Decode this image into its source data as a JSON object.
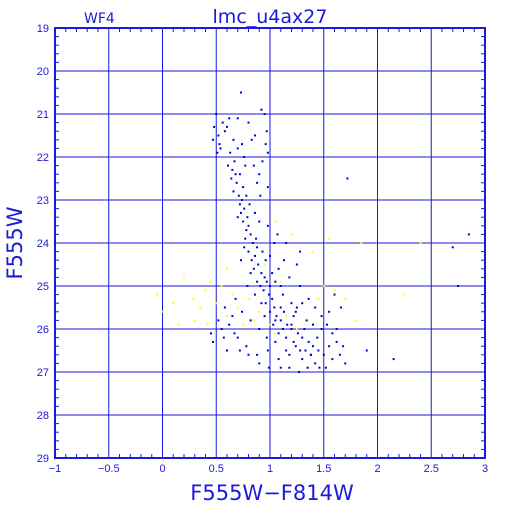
{
  "chart_data": {
    "type": "scatter",
    "panel_label": "WF4",
    "title": "lmc_u4ax27",
    "xlabel": "F555W−F814W",
    "ylabel": "F555W",
    "xlim": [
      -1,
      3
    ],
    "ylim": [
      29,
      19
    ],
    "y_inverted": true,
    "grid": true,
    "xticks": [
      -1,
      -0.5,
      0,
      0.5,
      1,
      1.5,
      2,
      2.5,
      3
    ],
    "xtick_labels": [
      "−1",
      "−0.5",
      "0",
      "0.5",
      "1",
      "1.5",
      "2",
      "2.5",
      "3"
    ],
    "yticks": [
      19,
      20,
      21,
      22,
      23,
      24,
      25,
      26,
      27,
      28,
      29
    ],
    "ytick_labels": [
      "19",
      "20",
      "21",
      "22",
      "23",
      "24",
      "25",
      "26",
      "27",
      "28",
      "29"
    ],
    "colors": {
      "axes": "#1a1adc",
      "blue_points": "#0000cc",
      "yellow_points": "#ffff00"
    },
    "series": [
      {
        "color": "blue",
        "points": [
          [
            0.5,
            21.0
          ],
          [
            0.56,
            21.2
          ],
          [
            0.48,
            21.3
          ],
          [
            0.52,
            21.5
          ],
          [
            0.47,
            21.6
          ],
          [
            0.53,
            21.7
          ],
          [
            0.51,
            21.9
          ],
          [
            0.54,
            21.8
          ],
          [
            0.73,
            20.5
          ],
          [
            0.92,
            20.9
          ],
          [
            0.95,
            21.0
          ],
          [
            0.6,
            21.3
          ],
          [
            0.7,
            21.1
          ],
          [
            0.8,
            21.2
          ],
          [
            0.66,
            21.6
          ],
          [
            0.86,
            21.5
          ],
          [
            0.97,
            21.4
          ],
          [
            0.96,
            21.7
          ],
          [
            0.98,
            21.9
          ],
          [
            0.63,
            21.9
          ],
          [
            0.7,
            21.8
          ],
          [
            0.76,
            22.0
          ],
          [
            0.93,
            22.1
          ],
          [
            0.61,
            22.2
          ],
          [
            0.65,
            22.3
          ],
          [
            0.68,
            22.4
          ],
          [
            0.72,
            22.4
          ],
          [
            0.69,
            22.6
          ],
          [
            0.66,
            22.8
          ],
          [
            0.71,
            22.9
          ],
          [
            0.75,
            22.7
          ],
          [
            0.88,
            22.6
          ],
          [
            0.98,
            22.7
          ],
          [
            0.64,
            22.5
          ],
          [
            0.74,
            23.0
          ],
          [
            0.72,
            23.1
          ],
          [
            0.76,
            23.2
          ],
          [
            0.73,
            23.3
          ],
          [
            0.79,
            23.4
          ],
          [
            0.75,
            23.5
          ],
          [
            0.8,
            23.6
          ],
          [
            0.78,
            23.7
          ],
          [
            0.82,
            23.8
          ],
          [
            0.77,
            23.9
          ],
          [
            0.86,
            23.3
          ],
          [
            0.9,
            23.5
          ],
          [
            0.84,
            24.0
          ],
          [
            0.88,
            24.1
          ],
          [
            0.8,
            24.2
          ],
          [
            0.86,
            24.3
          ],
          [
            0.83,
            24.4
          ],
          [
            0.89,
            24.5
          ],
          [
            0.85,
            24.6
          ],
          [
            0.92,
            24.7
          ],
          [
            0.95,
            24.8
          ],
          [
            0.88,
            24.9
          ],
          [
            0.91,
            25.0
          ],
          [
            0.97,
            24.9
          ],
          [
            1.0,
            25.0
          ],
          [
            0.94,
            25.1
          ],
          [
            0.99,
            25.2
          ],
          [
            1.02,
            25.3
          ],
          [
            0.96,
            25.4
          ],
          [
            1.04,
            25.5
          ],
          [
            1.0,
            25.6
          ],
          [
            1.06,
            25.7
          ],
          [
            1.1,
            25.8
          ],
          [
            1.03,
            25.9
          ],
          [
            1.12,
            26.0
          ],
          [
            1.08,
            26.1
          ],
          [
            1.16,
            25.9
          ],
          [
            1.2,
            26.0
          ],
          [
            1.15,
            26.2
          ],
          [
            1.22,
            26.3
          ],
          [
            1.26,
            26.1
          ],
          [
            1.3,
            26.2
          ],
          [
            1.24,
            26.4
          ],
          [
            1.33,
            26.5
          ],
          [
            1.36,
            26.3
          ],
          [
            1.4,
            26.4
          ],
          [
            1.45,
            26.5
          ],
          [
            1.38,
            26.6
          ],
          [
            1.3,
            26.7
          ],
          [
            1.5,
            26.6
          ],
          [
            1.44,
            26.2
          ],
          [
            1.55,
            26.4
          ],
          [
            1.2,
            25.4
          ],
          [
            1.12,
            25.2
          ],
          [
            1.28,
            25.0
          ],
          [
            1.18,
            24.8
          ],
          [
            1.08,
            24.6
          ],
          [
            0.96,
            24.4
          ],
          [
            1.05,
            24.9
          ],
          [
            1.24,
            25.6
          ],
          [
            1.34,
            25.8
          ],
          [
            1.1,
            25.5
          ],
          [
            1.4,
            25.9
          ],
          [
            1.48,
            26.0
          ],
          [
            1.15,
            26.5
          ],
          [
            1.05,
            26.3
          ],
          [
            0.97,
            26.2
          ],
          [
            0.9,
            26.0
          ],
          [
            0.82,
            25.8
          ],
          [
            0.74,
            25.6
          ],
          [
            0.68,
            25.3
          ],
          [
            0.65,
            25.7
          ],
          [
            0.58,
            25.5
          ],
          [
            0.55,
            26.0
          ],
          [
            0.47,
            26.3
          ],
          [
            0.6,
            26.5
          ],
          [
            0.7,
            26.2
          ],
          [
            0.78,
            26.4
          ],
          [
            0.88,
            26.6
          ],
          [
            0.98,
            26.5
          ],
          [
            1.08,
            26.7
          ],
          [
            1.18,
            26.6
          ],
          [
            1.28,
            26.5
          ],
          [
            1.58,
            26.7
          ],
          [
            1.65,
            26.6
          ],
          [
            1.7,
            26.8
          ],
          [
            1.62,
            26.3
          ],
          [
            1.55,
            25.6
          ],
          [
            1.66,
            25.5
          ],
          [
            1.6,
            25.2
          ],
          [
            1.72,
            22.5
          ],
          [
            1.9,
            26.5
          ],
          [
            2.15,
            26.7
          ],
          [
            2.7,
            24.1
          ],
          [
            2.85,
            23.8
          ],
          [
            2.75,
            25.0
          ],
          [
            1.0,
            24.3
          ],
          [
            1.02,
            24.7
          ],
          [
            0.93,
            24.2
          ],
          [
            0.87,
            23.9
          ],
          [
            0.81,
            23.1
          ],
          [
            0.78,
            22.9
          ],
          [
            0.7,
            23.4
          ],
          [
            0.85,
            22.2
          ],
          [
            0.91,
            22.9
          ],
          [
            1.04,
            24.0
          ],
          [
            1.13,
            24.4
          ],
          [
            1.2,
            25.9
          ],
          [
            1.25,
            25.5
          ],
          [
            1.32,
            26.0
          ],
          [
            1.38,
            26.6
          ],
          [
            1.42,
            26.8
          ],
          [
            1.46,
            26.9
          ],
          [
            1.52,
            26.9
          ],
          [
            1.35,
            26.9
          ],
          [
            1.27,
            27.0
          ],
          [
            1.18,
            26.9
          ],
          [
            1.1,
            26.9
          ],
          [
            0.99,
            26.9
          ],
          [
            0.9,
            26.8
          ],
          [
            0.8,
            26.6
          ],
          [
            0.72,
            26.5
          ],
          [
            0.67,
            26.1
          ],
          [
            0.62,
            25.9
          ],
          [
            0.57,
            26.2
          ],
          [
            0.52,
            25.8
          ],
          [
            0.45,
            26.1
          ],
          [
            0.95,
            25.7
          ],
          [
            1.05,
            25.8
          ],
          [
            1.13,
            25.6
          ],
          [
            1.22,
            25.7
          ],
          [
            1.3,
            25.4
          ],
          [
            1.36,
            25.3
          ],
          [
            1.42,
            25.5
          ],
          [
            1.48,
            25.7
          ],
          [
            1.53,
            25.9
          ],
          [
            1.58,
            26.1
          ],
          [
            1.62,
            26.0
          ],
          [
            1.68,
            26.4
          ],
          [
            0.98,
            23.6
          ],
          [
            0.76,
            24.1
          ],
          [
            0.73,
            24.4
          ],
          [
            0.82,
            24.7
          ],
          [
            0.79,
            25.0
          ],
          [
            0.86,
            25.2
          ],
          [
            0.92,
            25.4
          ],
          [
            0.77,
            22.2
          ],
          [
            0.83,
            21.6
          ],
          [
            0.58,
            21.4
          ],
          [
            0.62,
            21.1
          ],
          [
            0.9,
            22.4
          ],
          [
            0.67,
            22.1
          ],
          [
            0.74,
            21.7
          ],
          [
            1.15,
            24.0
          ],
          [
            1.25,
            24.5
          ],
          [
            1.28,
            24.2
          ],
          [
            1.07,
            23.8
          ],
          [
            1.1,
            25.0
          ]
        ]
      },
      {
        "color": "yellow",
        "points": [
          [
            -0.05,
            25.2
          ],
          [
            0.0,
            25.6
          ],
          [
            0.1,
            25.4
          ],
          [
            0.2,
            24.8
          ],
          [
            0.28,
            25.3
          ],
          [
            0.35,
            25.5
          ],
          [
            0.4,
            25.1
          ],
          [
            0.42,
            25.9
          ],
          [
            0.5,
            25.4
          ],
          [
            0.55,
            25.0
          ],
          [
            0.6,
            25.7
          ],
          [
            0.65,
            25.2
          ],
          [
            0.7,
            25.5
          ],
          [
            0.75,
            25.9
          ],
          [
            0.8,
            25.3
          ],
          [
            0.85,
            25.8
          ],
          [
            0.9,
            25.6
          ],
          [
            1.0,
            25.9
          ],
          [
            1.05,
            26.1
          ],
          [
            1.15,
            25.7
          ],
          [
            1.25,
            26.0
          ],
          [
            1.35,
            25.8
          ],
          [
            1.45,
            25.3
          ],
          [
            1.5,
            25.0
          ],
          [
            1.6,
            25.1
          ],
          [
            1.7,
            25.3
          ],
          [
            1.8,
            25.8
          ],
          [
            2.25,
            25.2
          ],
          [
            1.05,
            23.5
          ],
          [
            1.2,
            23.8
          ],
          [
            1.55,
            23.9
          ],
          [
            1.85,
            24.0
          ],
          [
            2.4,
            24.0
          ],
          [
            0.6,
            24.6
          ],
          [
            0.45,
            24.9
          ],
          [
            0.3,
            25.8
          ],
          [
            0.15,
            25.9
          ],
          [
            0.95,
            24.5
          ],
          [
            1.4,
            24.2
          ],
          [
            1.1,
            24.9
          ]
        ]
      }
    ]
  }
}
